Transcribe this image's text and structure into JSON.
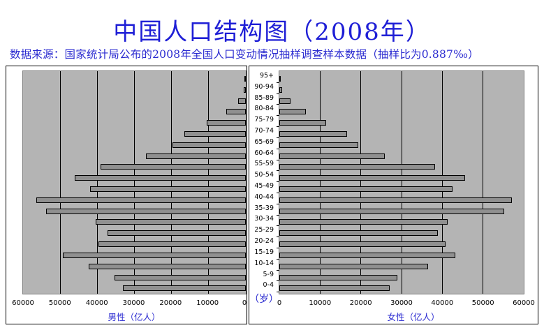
{
  "header": {
    "title": "中国人口结构图（2008年）",
    "subtitle": "数据来源：国家统计局公布的2008年全国人口变动情况抽样调查样本数据（抽样比为0.887‰）"
  },
  "colors": {
    "title": "#1f1fd6",
    "plot_background": "#b4b4b4",
    "bar_fill": "#909090",
    "bar_border": "#000000",
    "gridline": "#000000"
  },
  "age_axis_label": "（岁）",
  "chart_data": [
    {
      "type": "bar",
      "orientation": "horizontal",
      "title": "男性",
      "xlabel": "男性（亿人）",
      "ylabel": "（岁）",
      "xlim": [
        60000,
        0
      ],
      "x_reversed": true,
      "xticks": [
        "60000",
        "50000",
        "40000",
        "30000",
        "20000",
        "10000",
        "0"
      ],
      "grid": true,
      "categories": [
        "95+",
        "90-94",
        "85-89",
        "80-84",
        "75-79",
        "70-74",
        "65-69",
        "60-64",
        "55-59",
        "50-54",
        "45-49",
        "40-44",
        "35-39",
        "30-34",
        "25-29",
        "20-24",
        "15-19",
        "10-14",
        "5-9",
        "0-4"
      ],
      "values": [
        400,
        500,
        2000,
        5200,
        10600,
        16600,
        19800,
        26900,
        39300,
        46300,
        42100,
        56600,
        53900,
        40600,
        37400,
        39900,
        49400,
        42500,
        35400,
        33300
      ]
    },
    {
      "type": "bar",
      "orientation": "horizontal",
      "title": "女性",
      "xlabel": "女性（亿人）",
      "ylabel": "（岁）",
      "xlim": [
        0,
        60000
      ],
      "xticks": [
        "0",
        "10000",
        "20000",
        "30000",
        "40000",
        "50000",
        "60000"
      ],
      "grid": true,
      "categories": [
        "95+",
        "90-94",
        "85-89",
        "80-84",
        "75-79",
        "70-74",
        "65-69",
        "60-64",
        "55-59",
        "50-54",
        "45-49",
        "40-44",
        "35-39",
        "30-34",
        "25-29",
        "20-24",
        "15-19",
        "10-14",
        "5-9",
        "0-4"
      ],
      "values": [
        300,
        700,
        2700,
        6500,
        11500,
        16600,
        19400,
        25900,
        38400,
        45800,
        42700,
        57200,
        55400,
        41500,
        39000,
        41000,
        43400,
        36700,
        29100,
        27100
      ]
    }
  ]
}
